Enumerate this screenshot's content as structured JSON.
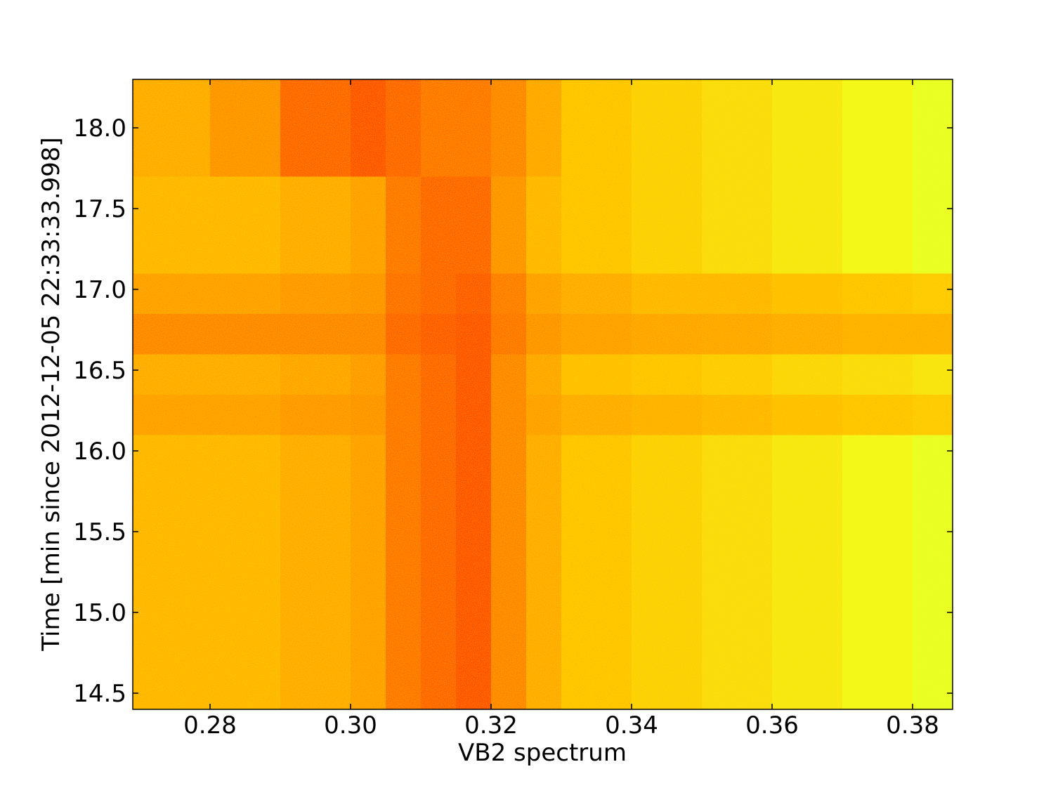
{
  "chart_data": {
    "type": "heatmap",
    "xlabel": "VB2 spectrum",
    "ylabel": "Time [min since 2012-12-05 22:33:33.998]",
    "xlim": [
      0.269,
      0.3857
    ],
    "ylim": [
      14.4,
      18.3
    ],
    "xticks": [
      0.28,
      {
        "value": 0.3,
        "label": "0.30"
      },
      0.32,
      0.34,
      0.36,
      0.38
    ],
    "yticks": [
      14.5,
      {
        "value": 15,
        "label": "15.0"
      },
      15.5,
      {
        "value": 16,
        "label": "16.0"
      },
      16.5,
      {
        "value": 17,
        "label": "17.0"
      },
      17.5,
      {
        "value": 18,
        "label": "18.0"
      }
    ],
    "xbins": [
      0.269,
      0.28,
      0.29,
      0.3,
      0.305,
      0.31,
      0.315,
      0.32,
      0.325,
      0.33,
      0.34,
      0.35,
      0.36,
      0.37,
      0.38,
      0.3857
    ],
    "ybins": [
      14.4,
      16.1,
      16.35,
      16.6,
      16.85,
      17.1,
      17.7,
      18.3
    ],
    "colormap": [
      "#a8ff60",
      "#f0ff20",
      "#ffc000",
      "#ff8000",
      "#ff2800"
    ],
    "values": [
      [
        0.55,
        0.55,
        0.6,
        0.65,
        0.8,
        0.85,
        0.9,
        0.75,
        0.6,
        0.5,
        0.45,
        0.4,
        0.35,
        0.28,
        0.22
      ],
      [
        0.65,
        0.65,
        0.68,
        0.7,
        0.8,
        0.85,
        0.9,
        0.75,
        0.65,
        0.6,
        0.58,
        0.55,
        0.52,
        0.5,
        0.48
      ],
      [
        0.6,
        0.6,
        0.63,
        0.67,
        0.8,
        0.85,
        0.9,
        0.75,
        0.62,
        0.52,
        0.5,
        0.47,
        0.43,
        0.4,
        0.37
      ],
      [
        0.75,
        0.75,
        0.75,
        0.75,
        0.85,
        0.88,
        0.9,
        0.8,
        0.7,
        0.65,
        0.63,
        0.62,
        0.6,
        0.58,
        0.58
      ],
      [
        0.65,
        0.65,
        0.68,
        0.7,
        0.82,
        0.85,
        0.88,
        0.78,
        0.65,
        0.6,
        0.55,
        0.55,
        0.52,
        0.5,
        0.48
      ],
      [
        0.55,
        0.55,
        0.6,
        0.65,
        0.8,
        0.85,
        0.85,
        0.7,
        0.55,
        0.5,
        0.45,
        0.4,
        0.35,
        0.28,
        0.22
      ],
      [
        0.6,
        0.7,
        0.85,
        0.9,
        0.85,
        0.8,
        0.8,
        0.75,
        0.62,
        0.5,
        0.45,
        0.4,
        0.35,
        0.28,
        0.22
      ]
    ]
  }
}
